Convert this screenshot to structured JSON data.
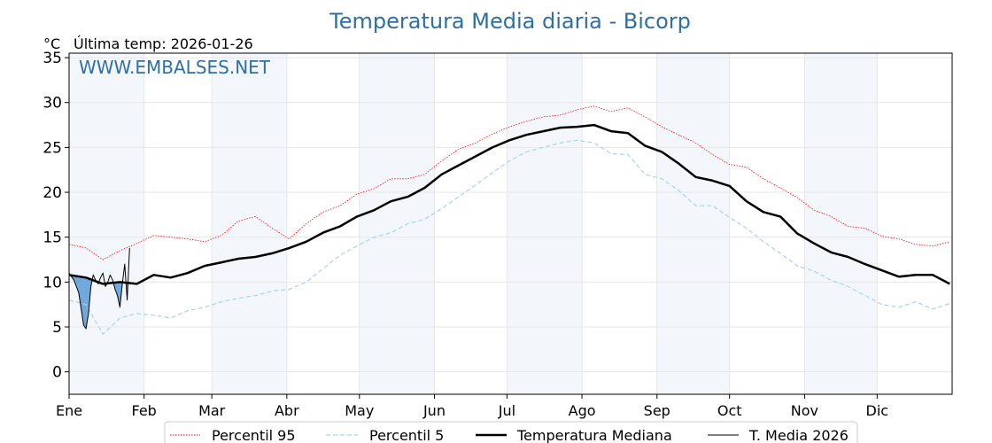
{
  "chart_data": {
    "type": "line",
    "title": "Temperatura Media diaria - Bicorp",
    "ylabel": "°C",
    "subtitle": "Última temp: 2026-01-26",
    "watermark": "WWW.EMBALSES.NET",
    "ylim": [
      -2.5,
      35.5
    ],
    "yticks": [
      0,
      5,
      10,
      15,
      20,
      25,
      30,
      35
    ],
    "months": [
      "Ene",
      "Feb",
      "Mar",
      "Abr",
      "May",
      "Jun",
      "Jul",
      "Ago",
      "Sep",
      "Oct",
      "Nov",
      "Dic"
    ],
    "grid": true,
    "legend_position": "bottom",
    "series": [
      {
        "name": "Percentil 95",
        "color": "#ff0000",
        "style": "dotted",
        "x": [
          1,
          8,
          15,
          22,
          29,
          36,
          43,
          50,
          57,
          64,
          71,
          78,
          85,
          92,
          99,
          106,
          113,
          120,
          127,
          134,
          141,
          148,
          155,
          162,
          169,
          176,
          183,
          190,
          197,
          204,
          211,
          218,
          225,
          232,
          239,
          246,
          253,
          260,
          267,
          274,
          281,
          288,
          295,
          302,
          309,
          316,
          323,
          330,
          337,
          344,
          351,
          358,
          365
        ],
        "values": [
          14.2,
          13.8,
          12.5,
          13.5,
          14.3,
          15.2,
          15.0,
          14.8,
          14.5,
          15.2,
          16.8,
          17.3,
          16.0,
          14.8,
          16.5,
          17.8,
          18.5,
          19.8,
          20.4,
          21.5,
          21.5,
          22.0,
          23.5,
          24.8,
          25.5,
          26.5,
          27.3,
          27.9,
          28.4,
          28.6,
          29.2,
          29.6,
          29.0,
          29.4,
          28.4,
          27.3,
          26.4,
          25.5,
          24.2,
          23.1,
          22.8,
          21.5,
          20.5,
          19.4,
          18.0,
          17.3,
          16.2,
          16.0,
          15.1,
          14.8,
          14.2,
          14.0,
          14.5
        ]
      },
      {
        "name": "Percentil 5",
        "color": "#a8d4e6",
        "style": "dashed",
        "x": [
          1,
          8,
          15,
          22,
          29,
          36,
          43,
          50,
          57,
          64,
          71,
          78,
          85,
          92,
          99,
          106,
          113,
          120,
          127,
          134,
          141,
          148,
          155,
          162,
          169,
          176,
          183,
          190,
          197,
          204,
          211,
          218,
          225,
          232,
          239,
          246,
          253,
          260,
          267,
          274,
          281,
          288,
          295,
          302,
          309,
          316,
          323,
          330,
          337,
          344,
          351,
          358,
          365
        ],
        "values": [
          8.0,
          7.5,
          4.2,
          6.0,
          6.5,
          6.3,
          6.0,
          6.8,
          7.2,
          7.8,
          8.2,
          8.5,
          9.0,
          9.2,
          10.0,
          11.5,
          13.0,
          14.0,
          15.0,
          15.5,
          16.5,
          17.0,
          18.2,
          19.5,
          20.8,
          22.2,
          23.5,
          24.5,
          25.0,
          25.5,
          25.8,
          25.5,
          24.3,
          24.2,
          22.0,
          21.5,
          20.2,
          18.5,
          18.5,
          17.2,
          16.0,
          14.5,
          13.2,
          11.8,
          11.2,
          10.2,
          9.5,
          8.5,
          7.5,
          7.2,
          7.8,
          7.0,
          7.6
        ]
      },
      {
        "name": "Temperatura Mediana",
        "color": "#000000",
        "style": "solid-thick",
        "x": [
          1,
          8,
          15,
          22,
          29,
          36,
          43,
          50,
          57,
          64,
          71,
          78,
          85,
          92,
          99,
          106,
          113,
          120,
          127,
          134,
          141,
          148,
          155,
          162,
          169,
          176,
          183,
          190,
          197,
          204,
          211,
          218,
          225,
          232,
          239,
          246,
          253,
          260,
          267,
          274,
          281,
          288,
          295,
          302,
          309,
          316,
          323,
          330,
          337,
          344,
          351,
          358,
          365
        ],
        "values": [
          10.8,
          10.5,
          9.8,
          10.0,
          9.8,
          10.8,
          10.5,
          11.0,
          11.8,
          12.2,
          12.6,
          12.8,
          13.2,
          13.8,
          14.5,
          15.5,
          16.2,
          17.3,
          18.0,
          19.0,
          19.5,
          20.5,
          22.0,
          23.0,
          24.0,
          25.0,
          25.8,
          26.4,
          26.8,
          27.2,
          27.3,
          27.5,
          26.8,
          26.6,
          25.2,
          24.5,
          23.2,
          21.7,
          21.3,
          20.7,
          19.0,
          17.8,
          17.3,
          15.4,
          14.3,
          13.3,
          12.8,
          12.0,
          11.3,
          10.6,
          10.8,
          10.8,
          9.8
        ]
      },
      {
        "name": "T. Media 2026",
        "color": "#000000",
        "style": "solid-thin",
        "x": [
          1,
          3,
          5,
          7,
          8,
          9,
          10,
          11,
          12,
          13,
          14,
          15,
          16,
          17,
          18,
          19,
          20,
          21,
          22,
          23,
          24,
          25,
          26
        ],
        "values": [
          11.0,
          10.2,
          8.8,
          5.2,
          4.8,
          6.5,
          9.5,
          10.8,
          10.2,
          9.8,
          10.5,
          11.0,
          9.5,
          10.0,
          10.8,
          10.2,
          9.2,
          8.5,
          7.2,
          9.8,
          12.0,
          8.0,
          13.8
        ]
      }
    ]
  }
}
